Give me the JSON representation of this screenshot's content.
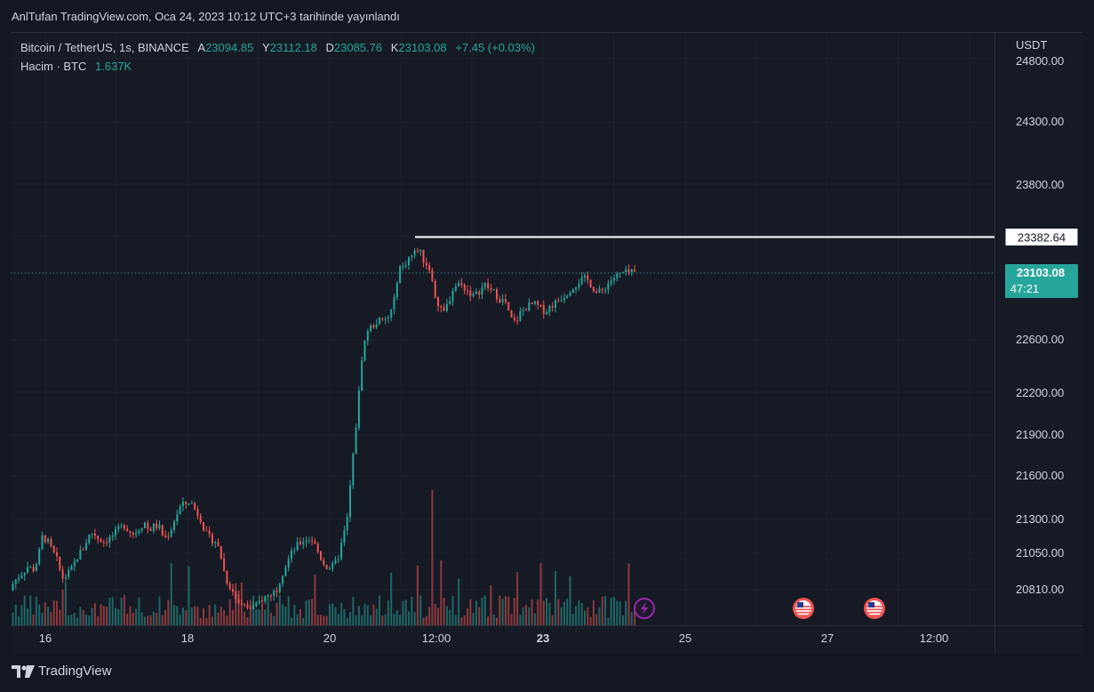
{
  "publisher_text": "AnlTufan TradingView.com, Oca 24, 2023 10:12 UTC+3 tarihinde yayınlandı",
  "legend": {
    "symbol": "Bitcoin / TetherUS, 1s, BINANCE",
    "open_key": "A",
    "open": "23094.85",
    "high_key": "Y",
    "high": "23112.18",
    "low_key": "D",
    "low": "23085.76",
    "close_key": "K",
    "close": "23103.08",
    "change": "+7.45 (+0.03%)",
    "volume_label": "Hacim · BTC",
    "volume_value": "1.637K"
  },
  "currency": "USDT",
  "brand": "TradingView",
  "colors": {
    "up": "#26a69a",
    "down": "#ef5350",
    "background": "#161a25",
    "price_tag": "#26a69a",
    "marker_line": "#ffffff",
    "event_icon": "#9c27b0"
  },
  "chart_data": {
    "type": "candlestick",
    "y_scale": "logarithmic",
    "y_ticks": [
      20810,
      21050,
      21300,
      21600,
      21900,
      22200,
      22600,
      23800,
      24300,
      24800
    ],
    "y_tick_labels": [
      "20810.00",
      "21050.00",
      "21300.00",
      "21600.00",
      "21900.00",
      "22200.00",
      "22600.00",
      "23800.00",
      "24300.00",
      "24800.00"
    ],
    "x_tick_labels": [
      "16",
      "18",
      "20",
      "12:00",
      "23",
      "25",
      "27",
      "12:00"
    ],
    "horizontal_line": {
      "value": 23382.64,
      "label": "23382.64"
    },
    "last_price": {
      "value": 23103.08,
      "label": "23103.08",
      "countdown": "47:21"
    },
    "event_icons": [
      "lightning-icon",
      "us-flag-icon",
      "us-flag-icon"
    ],
    "price_points": [
      [
        0,
        20800
      ],
      [
        8,
        20870
      ],
      [
        16,
        20920
      ],
      [
        22,
        20960
      ],
      [
        27,
        20930
      ],
      [
        33,
        21000
      ],
      [
        38,
        21170
      ],
      [
        44,
        21130
      ],
      [
        50,
        21050
      ],
      [
        55,
        20990
      ],
      [
        60,
        20880
      ],
      [
        66,
        20900
      ],
      [
        72,
        20950
      ],
      [
        78,
        21030
      ],
      [
        84,
        21080
      ],
      [
        90,
        21170
      ],
      [
        95,
        21200
      ],
      [
        101,
        21150
      ],
      [
        107,
        21130
      ],
      [
        113,
        21150
      ],
      [
        118,
        21180
      ],
      [
        124,
        21220
      ],
      [
        130,
        21250
      ],
      [
        136,
        21210
      ],
      [
        141,
        21180
      ],
      [
        147,
        21230
      ],
      [
        153,
        21270
      ],
      [
        158,
        21210
      ],
      [
        164,
        21250
      ],
      [
        170,
        21230
      ],
      [
        175,
        21150
      ],
      [
        181,
        21190
      ],
      [
        187,
        21300
      ],
      [
        193,
        21380
      ],
      [
        198,
        21400
      ],
      [
        204,
        21420
      ],
      [
        210,
        21360
      ],
      [
        216,
        21300
      ],
      [
        221,
        21200
      ],
      [
        227,
        21150
      ],
      [
        233,
        21130
      ],
      [
        238,
        21050
      ],
      [
        244,
        20880
      ],
      [
        250,
        20820
      ],
      [
        256,
        20740
      ],
      [
        261,
        20700
      ],
      [
        267,
        20690
      ],
      [
        273,
        20680
      ],
      [
        279,
        20700
      ],
      [
        284,
        20740
      ],
      [
        290,
        20760
      ],
      [
        296,
        20780
      ],
      [
        301,
        20800
      ],
      [
        307,
        20900
      ],
      [
        313,
        20980
      ],
      [
        319,
        21050
      ],
      [
        324,
        21100
      ],
      [
        330,
        21130
      ],
      [
        336,
        21150
      ],
      [
        342,
        21140
      ],
      [
        347,
        21070
      ],
      [
        353,
        20990
      ],
      [
        359,
        20950
      ],
      [
        364,
        20950
      ],
      [
        370,
        21000
      ],
      [
        376,
        21150
      ],
      [
        381,
        21300
      ],
      [
        387,
        21700
      ],
      [
        393,
        22100
      ],
      [
        398,
        22500
      ],
      [
        404,
        22670
      ],
      [
        410,
        22700
      ],
      [
        416,
        22740
      ],
      [
        421,
        22730
      ],
      [
        427,
        22760
      ],
      [
        433,
        22850
      ],
      [
        439,
        23150
      ],
      [
        444,
        23150
      ],
      [
        450,
        23220
      ],
      [
        456,
        23250
      ],
      [
        461,
        23300
      ],
      [
        467,
        23200
      ],
      [
        473,
        23150
      ],
      [
        479,
        22950
      ],
      [
        484,
        22850
      ],
      [
        490,
        22800
      ],
      [
        496,
        22900
      ],
      [
        501,
        23000
      ],
      [
        507,
        23020
      ],
      [
        513,
        22990
      ],
      [
        519,
        22950
      ],
      [
        524,
        22920
      ],
      [
        530,
        22970
      ],
      [
        536,
        23010
      ],
      [
        541,
        22980
      ],
      [
        547,
        22950
      ],
      [
        553,
        22900
      ],
      [
        559,
        22880
      ],
      [
        564,
        22760
      ],
      [
        570,
        22720
      ],
      [
        576,
        22800
      ],
      [
        581,
        22830
      ],
      [
        587,
        22860
      ],
      [
        593,
        22860
      ],
      [
        599,
        22830
      ],
      [
        604,
        22810
      ],
      [
        610,
        22850
      ],
      [
        616,
        22880
      ],
      [
        621,
        22910
      ],
      [
        627,
        22940
      ],
      [
        633,
        22990
      ],
      [
        639,
        23020
      ],
      [
        644,
        23050
      ],
      [
        650,
        23060
      ],
      [
        656,
        23010
      ],
      [
        661,
        22950
      ],
      [
        667,
        22960
      ],
      [
        673,
        23010
      ],
      [
        678,
        23050
      ],
      [
        684,
        23080
      ],
      [
        690,
        23100
      ],
      [
        696,
        23105
      ],
      [
        702,
        23103
      ]
    ]
  }
}
